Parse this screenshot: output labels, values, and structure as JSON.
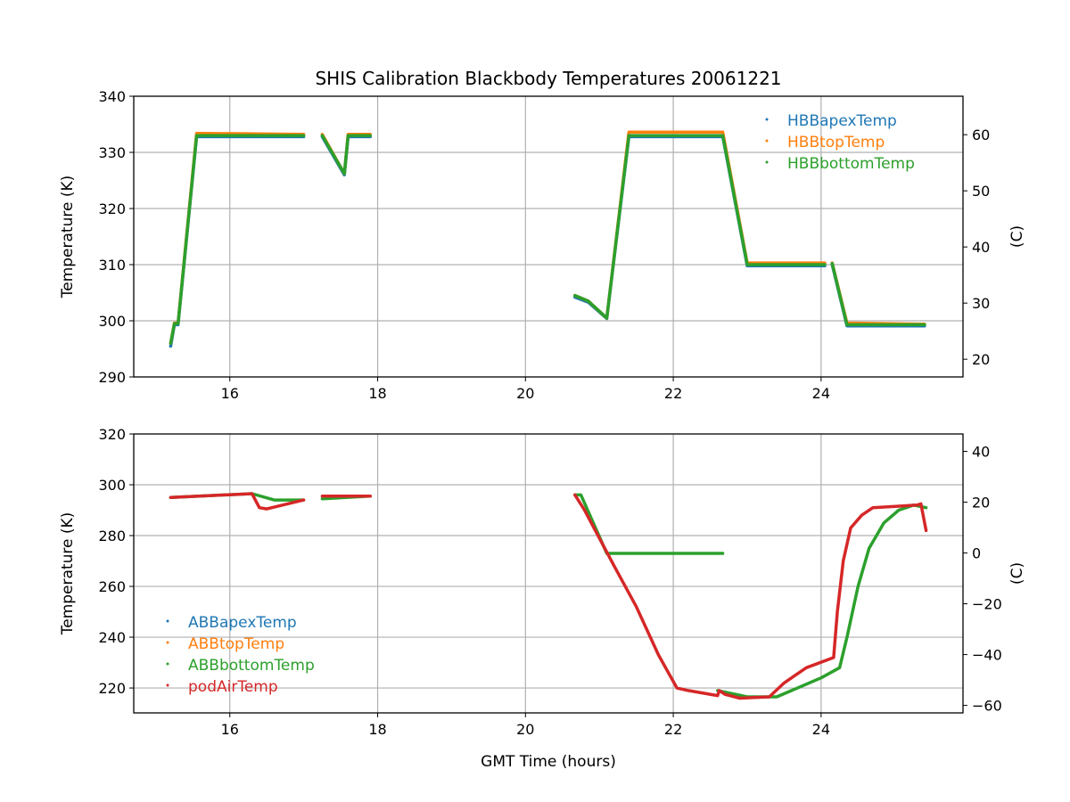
{
  "title": "SHIS Calibration Blackbody Temperatures 20061221",
  "chart_data": [
    {
      "type": "scatter",
      "ylabel": "Temperature (K)",
      "ylabel_right": "(C)",
      "xlim": [
        14.7,
        25.92
      ],
      "ylim": [
        290,
        340
      ],
      "xticks": [
        16,
        18,
        20,
        22,
        24
      ],
      "yticks": [
        290,
        300,
        310,
        320,
        330,
        340
      ],
      "yticks_right": [
        20,
        30,
        40,
        50,
        60
      ],
      "grid": true,
      "legend": "top-right",
      "series": [
        {
          "name": "HBBapexTemp",
          "color": "#1f77b4",
          "segments": [
            [
              [
                15.2,
                295.5
              ],
              [
                15.25,
                299.3
              ],
              [
                15.3,
                299.3
              ],
              [
                15.55,
                332.8
              ],
              [
                17.0,
                332.8
              ]
            ],
            [
              [
                17.25,
                332.8
              ],
              [
                17.55,
                326.0
              ],
              [
                17.6,
                332.8
              ],
              [
                17.9,
                332.8
              ]
            ],
            [
              [
                20.67,
                304.2
              ],
              [
                20.85,
                303.3
              ],
              [
                21.1,
                300.4
              ],
              [
                21.4,
                332.8
              ],
              [
                22.67,
                332.8
              ],
              [
                23.0,
                309.8
              ],
              [
                24.05,
                309.8
              ]
            ],
            [
              [
                24.15,
                310.0
              ],
              [
                24.35,
                299.1
              ],
              [
                25.4,
                299.1
              ]
            ]
          ]
        },
        {
          "name": "HBBtopTemp",
          "color": "#ff7f0e",
          "segments": [
            [
              [
                15.2,
                296
              ],
              [
                15.25,
                299.6
              ],
              [
                15.3,
                299.6
              ],
              [
                15.55,
                333.4
              ],
              [
                17.0,
                333.2
              ]
            ],
            [
              [
                17.25,
                333.2
              ],
              [
                17.55,
                326.2
              ],
              [
                17.6,
                333.2
              ],
              [
                17.9,
                333.2
              ]
            ],
            [
              [
                20.67,
                304.5
              ],
              [
                20.85,
                303.5
              ],
              [
                21.1,
                300.5
              ],
              [
                21.4,
                333.6
              ],
              [
                22.67,
                333.6
              ],
              [
                23.0,
                310.3
              ],
              [
                24.05,
                310.3
              ]
            ],
            [
              [
                24.15,
                310.3
              ],
              [
                24.35,
                299.6
              ],
              [
                25.4,
                299.4
              ]
            ]
          ]
        },
        {
          "name": "HBBbottomTemp",
          "color": "#2ca02c",
          "segments": [
            [
              [
                15.2,
                296
              ],
              [
                15.25,
                299.5
              ],
              [
                15.3,
                299.5
              ],
              [
                15.55,
                333
              ],
              [
                17.0,
                333
              ]
            ],
            [
              [
                17.25,
                333
              ],
              [
                17.55,
                326.2
              ],
              [
                17.6,
                333
              ],
              [
                17.9,
                333
              ]
            ],
            [
              [
                20.67,
                304.5
              ],
              [
                20.85,
                303.5
              ],
              [
                21.1,
                300.5
              ],
              [
                21.4,
                333
              ],
              [
                22.67,
                333
              ],
              [
                23.0,
                310
              ],
              [
                24.05,
                310
              ]
            ],
            [
              [
                24.15,
                310.2
              ],
              [
                24.35,
                299.3
              ],
              [
                25.4,
                299.3
              ]
            ]
          ]
        }
      ]
    },
    {
      "type": "scatter",
      "xlabel": "GMT Time (hours)",
      "ylabel": "Temperature (K)",
      "ylabel_right": "(C)",
      "xlim": [
        14.7,
        25.92
      ],
      "ylim": [
        210.2,
        320
      ],
      "xticks": [
        16,
        18,
        20,
        22,
        24
      ],
      "yticks": [
        220,
        240,
        260,
        280,
        300,
        320
      ],
      "yticks_right": [
        -60,
        -40,
        -20,
        0,
        20,
        40
      ],
      "grid": true,
      "legend": "lower-left",
      "series": [
        {
          "name": "ABBapexTemp",
          "color": "#1f77b4",
          "segments": []
        },
        {
          "name": "ABBtopTemp",
          "color": "#ff7f0e",
          "segments": []
        },
        {
          "name": "ABBbottomTemp",
          "color": "#2ca02c",
          "segments": [
            [
              [
                15.2,
                295
              ],
              [
                16.3,
                296.5
              ],
              [
                16.6,
                294
              ],
              [
                17.0,
                294
              ]
            ],
            [
              [
                17.25,
                294.5
              ],
              [
                17.9,
                295.5
              ]
            ],
            [
              [
                20.67,
                296
              ],
              [
                20.75,
                296
              ],
              [
                21.1,
                273
              ],
              [
                22.67,
                273
              ]
            ],
            [
              [
                22.6,
                219
              ],
              [
                23.0,
                216.5
              ],
              [
                23.4,
                216.5
              ],
              [
                24.0,
                224
              ],
              [
                24.25,
                228
              ],
              [
                24.35,
                240
              ],
              [
                24.5,
                260
              ],
              [
                24.65,
                275
              ],
              [
                24.85,
                285
              ],
              [
                25.05,
                290
              ],
              [
                25.25,
                292
              ],
              [
                25.42,
                291
              ]
            ]
          ]
        },
        {
          "name": "podAirTemp",
          "color": "#d62728",
          "segments": [
            [
              [
                15.2,
                295
              ],
              [
                16.3,
                296.5
              ],
              [
                16.4,
                291
              ],
              [
                16.5,
                290.5
              ],
              [
                17.0,
                294
              ]
            ],
            [
              [
                17.25,
                295.5
              ],
              [
                17.9,
                295.5
              ]
            ],
            [
              [
                20.67,
                296
              ],
              [
                20.8,
                290
              ],
              [
                21.0,
                279
              ],
              [
                21.2,
                268
              ],
              [
                21.5,
                252
              ],
              [
                21.8,
                233
              ],
              [
                22.05,
                220
              ],
              [
                22.2,
                219
              ],
              [
                22.6,
                217
              ],
              [
                22.62,
                219
              ],
              [
                22.7,
                217.5
              ],
              [
                22.9,
                216
              ],
              [
                23.3,
                216.5
              ],
              [
                23.5,
                222
              ],
              [
                23.8,
                228
              ],
              [
                24.17,
                232
              ],
              [
                24.22,
                250
              ],
              [
                24.3,
                270
              ],
              [
                24.4,
                283
              ],
              [
                24.55,
                288
              ],
              [
                24.7,
                291
              ],
              [
                25.3,
                292
              ],
              [
                25.35,
                292.5
              ],
              [
                25.42,
                282
              ]
            ]
          ]
        }
      ]
    }
  ]
}
